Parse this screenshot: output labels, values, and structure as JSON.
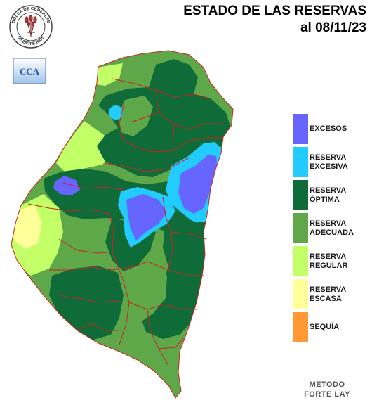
{
  "title": {
    "line1": "ESTADO DE LAS RESERVAS",
    "line2": "al 08/11/23"
  },
  "seal": {
    "top_text": "BOLSA DE CEREALES",
    "bottom_text": "DE ENTRE RIOS",
    "icon": "wheat-sheaf-icon"
  },
  "cca_logo": {
    "text": "CCA",
    "icon": "cca-logo-icon"
  },
  "legend": {
    "items": [
      {
        "line1": "EXCESOS",
        "line2": "",
        "color": "#6666ff"
      },
      {
        "line1": "RESERVA",
        "line2": "EXCESIVA",
        "color": "#22ccff"
      },
      {
        "line1": "RESERVA",
        "line2": "ÓPTIMA",
        "color": "#0f6b37"
      },
      {
        "line1": "RESERVA",
        "line2": "ADECUADA",
        "color": "#5fa84a"
      },
      {
        "line1": "RESERVA",
        "line2": "REGULAR",
        "color": "#c3ff66"
      },
      {
        "line1": "RESERVA",
        "line2": "ESCASA",
        "color": "#ffff99"
      },
      {
        "line1": "SEQUÍA",
        "line2": "",
        "color": "#ff9933"
      }
    ]
  },
  "method": {
    "line1": "METODO",
    "line2": "FORTE LAY"
  },
  "colors": {
    "excesos": "#6666ff",
    "excesiva": "#22ccff",
    "optima": "#0f6b37",
    "adecuada": "#5fa84a",
    "regular": "#c3ff66",
    "escasa": "#ffff99",
    "sequia": "#ff9933",
    "borders": "#cc2222"
  }
}
